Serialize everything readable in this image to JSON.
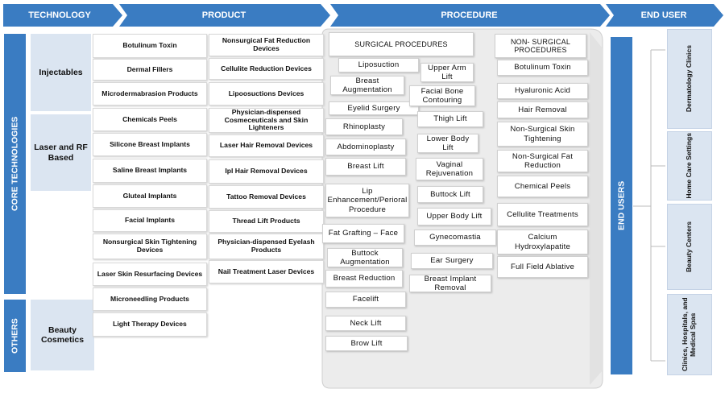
{
  "header": {
    "steps": [
      "TECHNOLOGY",
      "PRODUCT",
      "PROCEDURE",
      "END USER"
    ]
  },
  "technology": {
    "groups": [
      {
        "label": "CORE TECHNOLOGIES",
        "items": [
          "Injectables",
          "Laser and RF Based"
        ]
      },
      {
        "label": "OTHERS",
        "items": [
          "Beauty Cosmetics"
        ]
      }
    ]
  },
  "product": {
    "columns": [
      [
        "Botulinum Toxin",
        "Dermal Fillers",
        "Microdermabrasion Products",
        "Chemicals Peels",
        "Silicone Breast Implants",
        "Saline Breast Implants",
        "Gluteal Implants",
        "Facial  Implants",
        "Nonsurgical Skin Tightening Devices",
        "Laser Skin Resurfacing Devices",
        "Microneedling Products",
        "Light Therapy Devices"
      ],
      [
        "Nonsurgical Fat Reduction Devices",
        "Cellulite Reduction Devices",
        "Lipoosuctions Devices",
        "Physician-dispensed Cosmeceuticals and Skin Lighteners",
        "Laser Hair Removal Devices",
        "Ipl Hair Removal Devices",
        "Tattoo Removal Devices",
        "Thread Lift Products",
        "Physician-dispensed Eyelash Products",
        "Nail Treatment Laser Devices"
      ]
    ]
  },
  "procedure": {
    "surgical": {
      "title": "SURGICAL PROCEDURES",
      "columns": [
        [
          "Liposuction",
          "Breast Augmentation",
          "Eyelid Surgery",
          "Rhinoplasty",
          "Abdominoplasty",
          "Breast Lift",
          "Lip Enhancement/Perioral Procedure",
          "Fat Grafting – Face",
          "Buttock Augmentation",
          "Breast Reduction",
          "Facelift",
          "Neck Lift",
          "Brow Lift"
        ],
        [
          "Upper Arm Lift",
          "Facial Bone Contouring",
          "Thigh Lift",
          "Lower Body Lift",
          "Vaginal Rejuvenation",
          "Buttock Lift",
          "Upper Body Lift",
          "Gynecomastia",
          "Ear Surgery",
          "Breast Implant Removal"
        ]
      ]
    },
    "non_surgical": {
      "title": "NON- SURGICAL PROCEDURES",
      "items": [
        "Botulinum Toxin",
        "Hyaluronic Acid",
        "Hair Removal",
        "Non-Surgical Skin Tightening",
        "Non-Surgical Fat Reduction",
        "Chemical Peels",
        "Cellulite Treatments",
        "Calcium Hydroxylapatite",
        "Full Field Ablative"
      ]
    }
  },
  "end_user": {
    "label": "END USERS",
    "items": [
      "Dermatology Clinics",
      "Home Care Settings",
      "Beauty Centers",
      "Clinics, Hospitals, and Medical Spas"
    ]
  }
}
